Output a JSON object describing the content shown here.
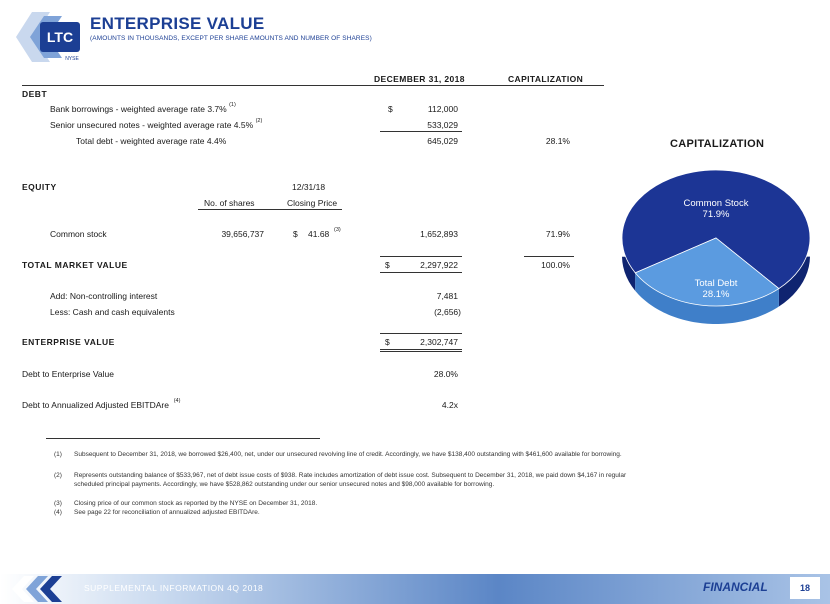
{
  "header": {
    "logo_text": "LTC",
    "logo_sub": "NYSE",
    "title": "ENTERPRISE VALUE",
    "subtitle": "(AMOUNTS IN THOUSANDS, EXCEPT PER SHARE AMOUNTS AND NUMBER OF SHARES)"
  },
  "columns": {
    "date": "DECEMBER 31, 2018",
    "capitalization": "CAPITALIZATION"
  },
  "debt": {
    "heading": "DEBT",
    "bank_label": "Bank borrowings - weighted average rate 3.7%",
    "bank_note": "(1)",
    "bank_dollar": "$",
    "bank_value": "112,000",
    "senior_label": "Senior unsecured notes - weighted average rate 4.5%",
    "senior_note": "(2)",
    "senior_value": "533,029",
    "total_label": "Total debt - weighted average rate 4.4%",
    "total_value": "645,029",
    "total_pct": "28.1%"
  },
  "equity": {
    "heading": "EQUITY",
    "date_col": "12/31/18",
    "shares_col": "No. of shares",
    "price_col": "Closing Price",
    "common_label": "Common stock",
    "shares": "39,656,737",
    "price_dollar": "$",
    "price": "41.68",
    "price_note": "(3)",
    "common_value": "1,652,893",
    "common_pct": "71.9%"
  },
  "tmv": {
    "label": "TOTAL MARKET VALUE",
    "dollar": "$",
    "value": "2,297,922",
    "pct": "100.0%"
  },
  "adjustments": {
    "nci_label": "Add:  Non-controlling interest",
    "nci_value": "7,481",
    "cash_label": "Less:  Cash and cash equivalents",
    "cash_value": "(2,656)"
  },
  "ev": {
    "label": "ENTERPRISE VALUE",
    "dollar": "$",
    "value": "2,302,747"
  },
  "ratios": {
    "debt_ev_label": "Debt to Enterprise Value",
    "debt_ev_value": "28.0%",
    "debt_ebitda_label": "Debt to Annualized Adjusted EBITDAre",
    "debt_ebitda_note": "(4)",
    "debt_ebitda_value": "4.2x"
  },
  "chart_data": {
    "type": "pie",
    "title": "CAPITALIZATION",
    "slices": [
      {
        "label": "Common Stock",
        "pct_label": "71.9%",
        "value": 71.9,
        "color": "#1c3595"
      },
      {
        "label": "Total Debt",
        "pct_label": "28.1%",
        "value": 28.1,
        "color": "#5b9be0"
      }
    ]
  },
  "footnotes": [
    {
      "n": "(1)",
      "text": "Subsequent to December 31, 2018, we borrowed $26,400, net, under our unsecured revolving line of credit.  Accordingly, we have $138,400 outstanding with $461,600 available for borrowing."
    },
    {
      "n": "(2)",
      "text": "Represents outstanding balance of $533,967, net of debt issue costs of $938.  Rate includes amortization of debt issue cost. Subsequent to December 31, 2018, we paid down $4,167 in regular scheduled principal payments.  Accordingly, we have $528,862 outstanding under our senior unsecured notes and $98,000 available for borrowing."
    },
    {
      "n": "(3)",
      "text": "Closing price of our common stock as reported by the NYSE on December 31, 2018."
    },
    {
      "n": "(4)",
      "text": "See page 22 for reconciliation of annualized adjusted EBITDAre."
    }
  ],
  "footer": {
    "left": "SUPPLEMENTAL INFORMATION  4Q 2018",
    "right": "FINANCIAL",
    "page": "18"
  }
}
